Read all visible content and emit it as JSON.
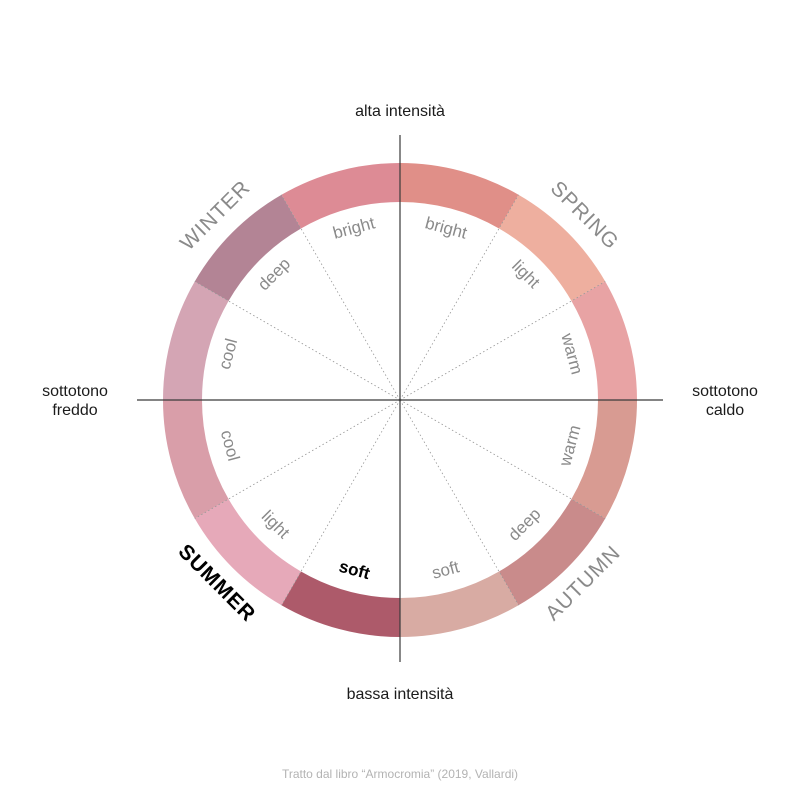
{
  "axes": {
    "top": "alta intensità",
    "bottom": "bassa intensità",
    "left": [
      "sottotono",
      "freddo"
    ],
    "right": [
      "sottotono",
      "caldo"
    ]
  },
  "seasons": [
    {
      "id": "spring",
      "label": "SPRING",
      "highlight": false
    },
    {
      "id": "autumn",
      "label": "AUTUMN",
      "highlight": false
    },
    {
      "id": "summer",
      "label": "SUMMER",
      "highlight": true
    },
    {
      "id": "winter",
      "label": "WINTER",
      "highlight": false
    }
  ],
  "segments": [
    {
      "season": "spring",
      "label": "bright",
      "color": "#e08f88",
      "highlight": false
    },
    {
      "season": "spring",
      "label": "light",
      "color": "#eeaf9f",
      "highlight": false
    },
    {
      "season": "spring",
      "label": "warm",
      "color": "#e8a3a4",
      "highlight": false
    },
    {
      "season": "autumn",
      "label": "warm",
      "color": "#d89b92",
      "highlight": false
    },
    {
      "season": "autumn",
      "label": "deep",
      "color": "#c98b8b",
      "highlight": false
    },
    {
      "season": "autumn",
      "label": "soft",
      "color": "#d8aba3",
      "highlight": false
    },
    {
      "season": "summer",
      "label": "soft",
      "color": "#ad5a6a",
      "highlight": true
    },
    {
      "season": "summer",
      "label": "light",
      "color": "#e6a9b9",
      "highlight": false
    },
    {
      "season": "summer",
      "label": "cool",
      "color": "#d99ea9",
      "highlight": false
    },
    {
      "season": "winter",
      "label": "cool",
      "color": "#d4a5b4",
      "highlight": false
    },
    {
      "season": "winter",
      "label": "deep",
      "color": "#b38495",
      "highlight": false
    },
    {
      "season": "winter",
      "label": "bright",
      "color": "#dd8b95",
      "highlight": false
    }
  ],
  "caption": "Tratto dal libro “Armocromia” (2019, Vallardi)"
}
